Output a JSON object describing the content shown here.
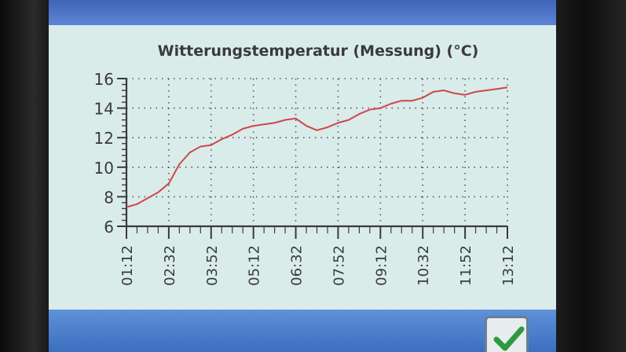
{
  "colors": {
    "accent_bar": "#4a72c4",
    "screen_bg": "#d9ece9",
    "line": "#d0454a",
    "text": "#3a3a3a",
    "confirm_check": "#2e9a3c"
  },
  "icons": {
    "confirm": "check-icon"
  },
  "chart_data": {
    "type": "line",
    "title": "Witterungstemperatur (Messung) (°C)",
    "xlabel": "",
    "ylabel": "",
    "ylim": [
      6,
      16
    ],
    "yticks": [
      "16",
      "14",
      "12",
      "10",
      "8",
      "6"
    ],
    "xlabels": [
      "01:12",
      "02:32",
      "03:52",
      "05:12",
      "06:32",
      "07:52",
      "09:12",
      "10:32",
      "11:52",
      "13:12"
    ],
    "grid": true,
    "series": [
      {
        "points": [
          [
            "01:12",
            7.3
          ],
          [
            "01:32",
            7.5
          ],
          [
            "01:52",
            7.9
          ],
          [
            "02:12",
            8.3
          ],
          [
            "02:32",
            8.9
          ],
          [
            "02:52",
            10.2
          ],
          [
            "03:12",
            11.0
          ],
          [
            "03:32",
            11.4
          ],
          [
            "03:52",
            11.5
          ],
          [
            "04:12",
            11.9
          ],
          [
            "04:32",
            12.2
          ],
          [
            "04:52",
            12.6
          ],
          [
            "05:12",
            12.8
          ],
          [
            "05:32",
            12.9
          ],
          [
            "05:52",
            13.0
          ],
          [
            "06:12",
            13.2
          ],
          [
            "06:32",
            13.3
          ],
          [
            "06:52",
            12.8
          ],
          [
            "07:12",
            12.5
          ],
          [
            "07:32",
            12.7
          ],
          [
            "07:52",
            13.0
          ],
          [
            "08:12",
            13.2
          ],
          [
            "08:32",
            13.6
          ],
          [
            "08:52",
            13.9
          ],
          [
            "09:12",
            14.0
          ],
          [
            "09:32",
            14.3
          ],
          [
            "09:52",
            14.5
          ],
          [
            "10:12",
            14.5
          ],
          [
            "10:32",
            14.7
          ],
          [
            "10:52",
            15.1
          ],
          [
            "11:12",
            15.2
          ],
          [
            "11:32",
            15.0
          ],
          [
            "11:52",
            14.9
          ],
          [
            "12:12",
            15.1
          ],
          [
            "12:32",
            15.2
          ],
          [
            "12:52",
            15.3
          ],
          [
            "13:12",
            15.4
          ]
        ]
      }
    ]
  }
}
